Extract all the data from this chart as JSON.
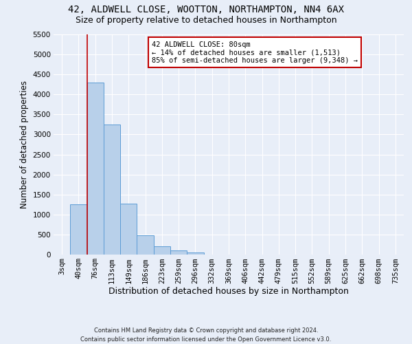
{
  "title_line1": "42, ALDWELL CLOSE, WOOTTON, NORTHAMPTON, NN4 6AX",
  "title_line2": "Size of property relative to detached houses in Northampton",
  "xlabel": "Distribution of detached houses by size in Northampton",
  "ylabel": "Number of detached properties",
  "footnote": "Contains HM Land Registry data © Crown copyright and database right 2024.\nContains public sector information licensed under the Open Government Licence v3.0.",
  "bar_labels": [
    "3sqm",
    "40sqm",
    "76sqm",
    "113sqm",
    "149sqm",
    "186sqm",
    "223sqm",
    "259sqm",
    "296sqm",
    "332sqm",
    "369sqm",
    "406sqm",
    "442sqm",
    "479sqm",
    "515sqm",
    "552sqm",
    "589sqm",
    "625sqm",
    "662sqm",
    "698sqm",
    "735sqm"
  ],
  "bar_values": [
    0,
    1250,
    4300,
    3250,
    1280,
    480,
    200,
    100,
    60,
    0,
    0,
    0,
    0,
    0,
    0,
    0,
    0,
    0,
    0,
    0,
    0
  ],
  "bar_color": "#b8d0ea",
  "bar_edge_color": "#5b9bd5",
  "vline_x": 1.5,
  "vline_color": "#c00000",
  "annotation_text": "42 ALDWELL CLOSE: 80sqm\n← 14% of detached houses are smaller (1,513)\n85% of semi-detached houses are larger (9,348) →",
  "annotation_box_facecolor": "#ffffff",
  "annotation_box_edgecolor": "#c00000",
  "ylim_max": 5500,
  "yticks": [
    0,
    500,
    1000,
    1500,
    2000,
    2500,
    3000,
    3500,
    4000,
    4500,
    5000,
    5500
  ],
  "background_color": "#e8eef8",
  "grid_color": "#ffffff",
  "title1_fontsize": 10,
  "title2_fontsize": 9,
  "tick_fontsize": 7.5,
  "ylabel_fontsize": 8.5,
  "xlabel_fontsize": 9
}
